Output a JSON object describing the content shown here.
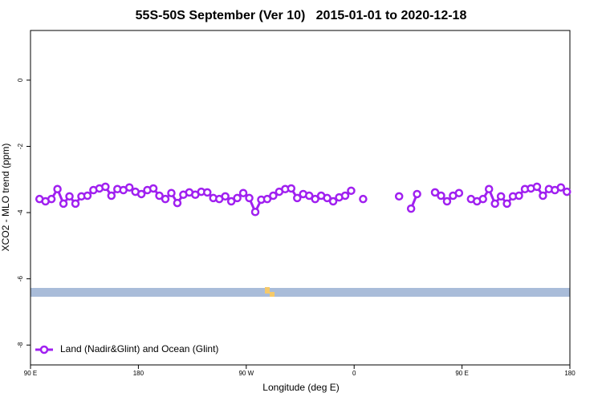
{
  "chart_data": {
    "type": "line",
    "title": "55S-50S September (Ver 10)   2015-01-01 to 2020-12-18",
    "x_label": "Longitude (deg E)",
    "y_label": "XCO2 - MLO trend (ppm)",
    "x": [
      97.5,
      102.5,
      107.5,
      112.5,
      117.5,
      122.5,
      127.5,
      132.5,
      137.5,
      142.5,
      147.5,
      152.5,
      157.5,
      162.5,
      167.5,
      172.5,
      177.5,
      182.5,
      187.5,
      192.5,
      197.5,
      202.5,
      207.5,
      212.5,
      217.5,
      222.5,
      227.5,
      232.5,
      237.5,
      242.5,
      247.5,
      252.5,
      257.5,
      262.5,
      267.5,
      272.5,
      277.5,
      282.5,
      287.5,
      292.5,
      297.5,
      302.5,
      307.5,
      312.5,
      317.5,
      322.5,
      327.5,
      332.5,
      337.5,
      342.5,
      347.5,
      352.5,
      357.5,
      362.5,
      367.5,
      372.5,
      377.5,
      382.5,
      387.5,
      392.5,
      397.5,
      402.5,
      407.5,
      412.5,
      417.5,
      422.5,
      427.5,
      432.5,
      437.5,
      442.5,
      447.5,
      452.5,
      457.5,
      462.5,
      467.5,
      472.5,
      477.5,
      482.5,
      487.5,
      492.5,
      497.5,
      502.5,
      507.5,
      512.5,
      517.5,
      522.5,
      527.5,
      532.5,
      537.5
    ],
    "series": [
      {
        "name": "Land (Nadir&Glint) and Ocean (Glint)",
        "color": "#a020f0",
        "values": [
          -3.59,
          -3.66,
          -3.59,
          -3.29,
          -3.73,
          -3.51,
          -3.73,
          -3.51,
          -3.49,
          -3.32,
          -3.27,
          -3.22,
          -3.49,
          -3.29,
          -3.32,
          -3.24,
          -3.37,
          -3.44,
          -3.32,
          -3.27,
          -3.49,
          -3.59,
          -3.41,
          -3.71,
          -3.46,
          -3.39,
          -3.46,
          -3.37,
          -3.39,
          -3.56,
          -3.59,
          -3.51,
          -3.66,
          -3.56,
          -3.41,
          -3.56,
          -3.98,
          -3.61,
          -3.59,
          -3.49,
          -3.37,
          -3.29,
          -3.27,
          -3.56,
          -3.44,
          -3.49,
          -3.59,
          -3.49,
          -3.56,
          -3.66,
          -3.54,
          -3.49,
          -3.34,
          null,
          -3.59,
          null,
          null,
          null,
          null,
          null,
          -3.51,
          null,
          -3.88,
          -3.44,
          null,
          null,
          -3.39,
          -3.49,
          -3.66,
          -3.49,
          -3.41,
          null,
          -3.59,
          -3.66,
          -3.59,
          -3.29,
          -3.73,
          -3.51,
          -3.73,
          -3.51,
          -3.49,
          -3.29,
          -3.27,
          -3.22,
          -3.49,
          -3.29,
          -3.32,
          -3.24,
          -3.37
        ]
      }
    ],
    "xlim": [
      90,
      540
    ],
    "xticks": [
      {
        "value": 90,
        "label": "90 E"
      },
      180,
      {
        "value": 270,
        "label": "90 W"
      },
      {
        "value": 360,
        "label": "0"
      },
      {
        "value": 450,
        "label": "90 E"
      },
      {
        "value": 540,
        "label": "180"
      }
    ],
    "ylim": [
      -8.6,
      1.5
    ],
    "yticks": [
      -8,
      -6,
      -4,
      -2,
      0
    ],
    "legend": "bottomleft",
    "grid": false
  }
}
